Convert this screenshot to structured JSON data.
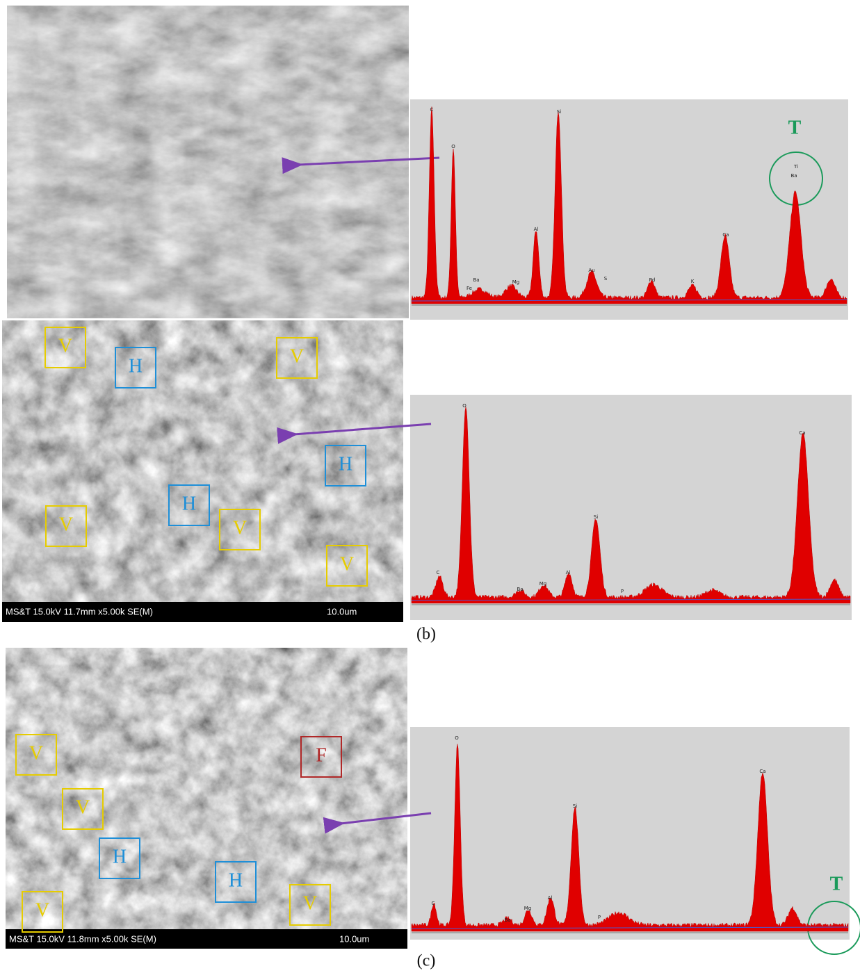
{
  "panels": [
    {
      "spectrum_labels": [
        "C",
        "O",
        "Fe",
        "Ba",
        "Mg",
        "Al",
        "Si",
        "Au",
        "S",
        "Pd",
        "K",
        "Ca",
        "Ti",
        "Ba"
      ],
      "marker": "T"
    },
    {
      "boxes": [
        "V",
        "H",
        "V",
        "V",
        "H",
        "H",
        "V",
        "V"
      ],
      "sem_info": "MS&T 15.0kV 11.7mm x5.00k SE(M)",
      "scale": "10.0um",
      "spectrum_labels": [
        "C",
        "O",
        "Ba",
        "Mg",
        "Al",
        "Si",
        "P",
        "Ca"
      ],
      "caption": "(b)"
    },
    {
      "boxes": [
        "V",
        "F",
        "V",
        "H",
        "V",
        "H",
        "V"
      ],
      "sem_info": "MS&T 15.0kV 11.8mm x5.00k SE(M)",
      "scale": "10.0um",
      "spectrum_labels": [
        "C",
        "O",
        "Ba",
        "Mg",
        "Al",
        "Si",
        "P",
        "Ca"
      ],
      "marker": "T",
      "caption": "(c)"
    }
  ]
}
